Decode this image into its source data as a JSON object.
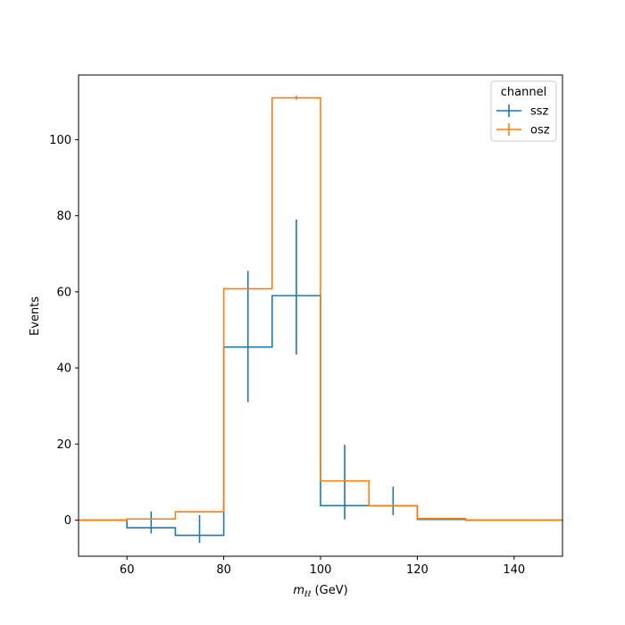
{
  "chart_data": {
    "type": "step",
    "xlabel_main": "m",
    "xlabel_sub": "ℓℓ",
    "xlabel_unit": " (GeV)",
    "ylabel": "Events",
    "xlim": [
      50,
      150
    ],
    "ylim": [
      -9.5,
      117
    ],
    "xticks": [
      60,
      80,
      100,
      120,
      140
    ],
    "yticks": [
      0,
      20,
      40,
      60,
      80,
      100
    ],
    "bin_edges": [
      50,
      60,
      70,
      80,
      90,
      100,
      110,
      120,
      130,
      140,
      150
    ],
    "legend": {
      "title": "channel",
      "position": "top-right"
    },
    "series": [
      {
        "name": "ssz",
        "color": "#1f77b4",
        "values": [
          0,
          -2,
          -4,
          45.5,
          59,
          3.8,
          3.8,
          0.2,
          0,
          0
        ],
        "errors": [
          null,
          [
            -3.5,
            2.3
          ],
          [
            -6,
            1.3
          ],
          [
            31,
            65.5
          ],
          [
            43.5,
            79
          ],
          [
            0.2,
            19.8
          ],
          [
            1.3,
            8.8
          ],
          [
            0,
            0.4
          ],
          null,
          null
        ]
      },
      {
        "name": "osz",
        "color": "#ff7f0e",
        "values": [
          0,
          0.3,
          2.2,
          60.8,
          111,
          10.3,
          3.8,
          0.4,
          0,
          0
        ],
        "errors": [
          null,
          null,
          null,
          null,
          [
            110.5,
            111.6
          ],
          null,
          null,
          null,
          null,
          null
        ]
      }
    ]
  }
}
